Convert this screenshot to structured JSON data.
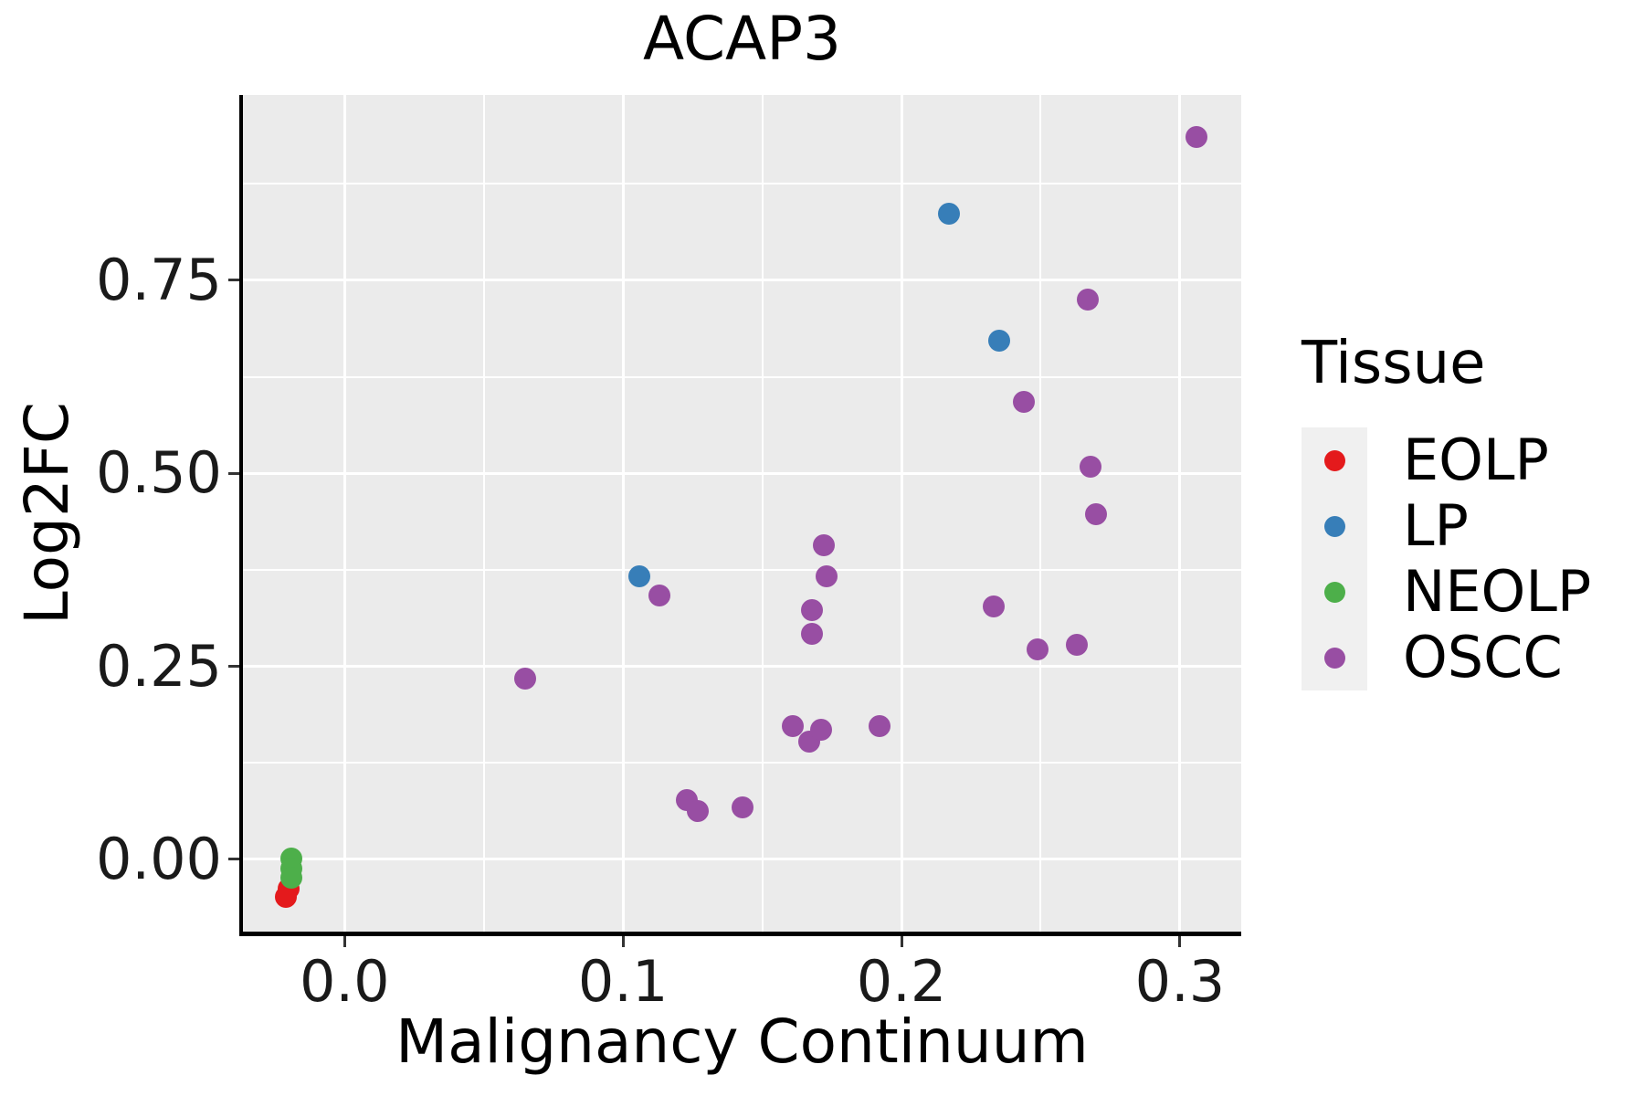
{
  "chart_data": {
    "type": "scatter",
    "title": "ACAP3",
    "xlabel": "Malignancy Continuum",
    "ylabel": "Log2FC",
    "panel_bg": "#EBEBEB",
    "grid_color": "#FFFFFF",
    "axis_line_color": "#000000",
    "tick_color": "#333333",
    "grid": "on",
    "xlim": [
      -0.0365,
      0.322
    ],
    "ylim": [
      -0.0936,
      0.99
    ],
    "x_ticks": {
      "values": [
        0.0,
        0.1,
        0.2,
        0.3
      ],
      "labels": [
        "0.0",
        "0.1",
        "0.2",
        "0.3"
      ]
    },
    "y_ticks": {
      "values": [
        0.0,
        0.25,
        0.5,
        0.75
      ],
      "labels": [
        "0.00",
        "0.25",
        "0.50",
        "0.75"
      ]
    },
    "x_minor": [
      0.05,
      0.15,
      0.25
    ],
    "y_minor": [
      0.125,
      0.375,
      0.625,
      0.875
    ],
    "point_radius": 12,
    "legend": {
      "title": "Tissue",
      "position": "right",
      "key_bg": "#F0F0F0",
      "entries": [
        {
          "label": "EOLP",
          "color": "#E41A1C"
        },
        {
          "label": "LP",
          "color": "#377EB8"
        },
        {
          "label": "NEOLP",
          "color": "#4DAF4A"
        },
        {
          "label": "OSCC",
          "color": "#984EA3"
        }
      ]
    },
    "series": [
      {
        "name": "EOLP",
        "color": "#E41A1C",
        "points": [
          [
            -0.02,
            -0.038
          ],
          [
            -0.021,
            -0.049
          ]
        ]
      },
      {
        "name": "LP",
        "color": "#377EB8",
        "points": [
          [
            0.106,
            0.366
          ],
          [
            0.217,
            0.836
          ],
          [
            0.235,
            0.672
          ]
        ]
      },
      {
        "name": "NEOLP",
        "color": "#4DAF4A",
        "points": [
          [
            -0.019,
            0.001
          ],
          [
            -0.019,
            -0.012
          ],
          [
            -0.019,
            -0.024
          ]
        ]
      },
      {
        "name": "OSCC",
        "color": "#984EA3",
        "points": [
          [
            0.065,
            0.234
          ],
          [
            0.113,
            0.342
          ],
          [
            0.123,
            0.077
          ],
          [
            0.127,
            0.062
          ],
          [
            0.143,
            0.067
          ],
          [
            0.161,
            0.172
          ],
          [
            0.167,
            0.152
          ],
          [
            0.171,
            0.168
          ],
          [
            0.192,
            0.172
          ],
          [
            0.168,
            0.292
          ],
          [
            0.168,
            0.323
          ],
          [
            0.172,
            0.407
          ],
          [
            0.173,
            0.367
          ],
          [
            0.233,
            0.327
          ],
          [
            0.244,
            0.592
          ],
          [
            0.249,
            0.272
          ],
          [
            0.263,
            0.278
          ],
          [
            0.267,
            0.725
          ],
          [
            0.268,
            0.509
          ],
          [
            0.27,
            0.447
          ],
          [
            0.306,
            0.936
          ]
        ]
      }
    ]
  }
}
